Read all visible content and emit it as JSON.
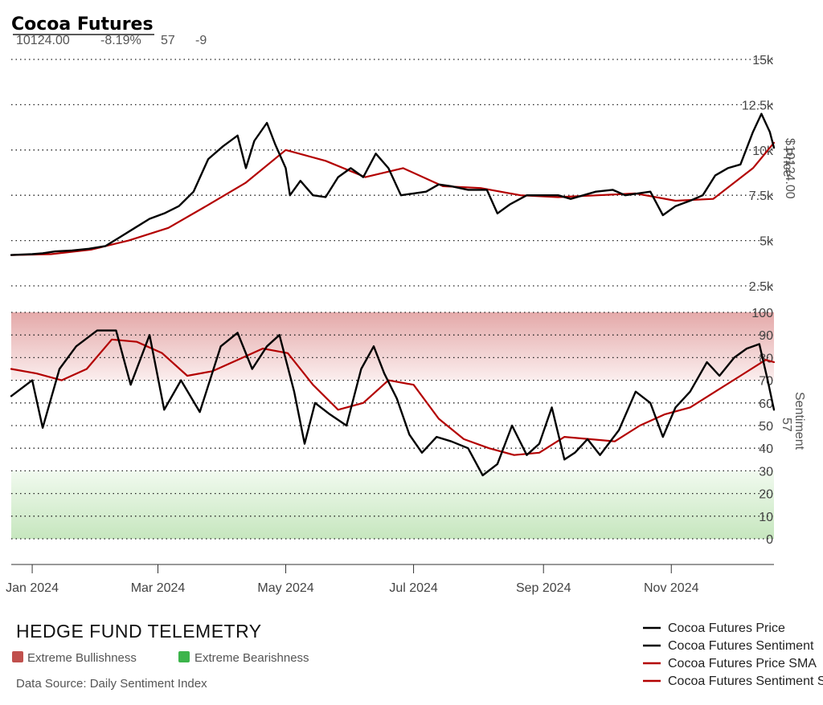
{
  "title": "Cocoa Futures",
  "stats": {
    "price": "10124.00",
    "change": "-8.19%",
    "sentiment": "57",
    "sentiment_change": "-9"
  },
  "brand": "HEDGE FUND TELEMETRY",
  "data_source": "Data Source: Daily Sentiment Index",
  "zones": [
    {
      "label": "Extreme Bullishness",
      "color": "#c0504d"
    },
    {
      "label": "Extreme Bearishness",
      "color": "#3cb44b"
    }
  ],
  "legend": [
    {
      "label": "Cocoa Futures Price",
      "color": "#000000"
    },
    {
      "label": "Cocoa Futures Sentiment",
      "color": "#000000"
    },
    {
      "label": "Cocoa Futures Price SMA",
      "color": "#b30000"
    },
    {
      "label": "Cocoa Futures Sentiment SMA",
      "color": "#b30000"
    }
  ],
  "colors": {
    "price": "#000000",
    "sma": "#b30000",
    "bull_zone": "#e8b0b0",
    "bear_zone": "#c8e8c0"
  },
  "price_axis": {
    "title": "Price",
    "value_label": "$10124.00",
    "ticks": [
      "15k",
      "12.5k",
      "10k",
      "7.5k",
      "5k",
      "2.5k"
    ],
    "tick_values": [
      15000,
      12500,
      10000,
      7500,
      5000,
      2500
    ],
    "range": [
      0,
      15000
    ]
  },
  "sentiment_axis": {
    "title": "Sentiment",
    "value_label": "57",
    "ticks": [
      "100",
      "90",
      "80",
      "70",
      "60",
      "50",
      "40",
      "30",
      "20",
      "10",
      "0"
    ],
    "tick_values": [
      100,
      90,
      80,
      70,
      60,
      50,
      40,
      30,
      20,
      10,
      0
    ],
    "range": [
      0,
      100
    ],
    "bull_zone": [
      70,
      100
    ],
    "bear_zone": [
      0,
      30
    ]
  },
  "x_axis": {
    "ticks": [
      "Jan 2024",
      "Mar 2024",
      "May 2024",
      "Jul 2024",
      "Sep 2024",
      "Nov 2024"
    ],
    "tick_dates": [
      "2024-01-01",
      "2024-03-01",
      "2024-05-01",
      "2024-07-01",
      "2024-09-01",
      "2024-11-01"
    ],
    "range": [
      "2023-12-22",
      "2024-12-20"
    ]
  },
  "chart_data": {
    "type": "line",
    "title": "Cocoa Futures",
    "xlabel": "",
    "series": [
      {
        "name": "Cocoa Futures Price",
        "panel": "price",
        "points": [
          [
            "2023-12-22",
            4200
          ],
          [
            "2024-01-01",
            4250
          ],
          [
            "2024-01-06",
            4300
          ],
          [
            "2024-01-12",
            4400
          ],
          [
            "2024-01-20",
            4450
          ],
          [
            "2024-01-28",
            4550
          ],
          [
            "2024-02-05",
            4700
          ],
          [
            "2024-02-12",
            5200
          ],
          [
            "2024-02-19",
            5700
          ],
          [
            "2024-02-26",
            6200
          ],
          [
            "2024-03-04",
            6500
          ],
          [
            "2024-03-11",
            6900
          ],
          [
            "2024-03-18",
            7700
          ],
          [
            "2024-03-25",
            9500
          ],
          [
            "2024-04-01",
            10200
          ],
          [
            "2024-04-08",
            10800
          ],
          [
            "2024-04-12",
            9000
          ],
          [
            "2024-04-16",
            10500
          ],
          [
            "2024-04-22",
            11500
          ],
          [
            "2024-04-26",
            10300
          ],
          [
            "2024-05-01",
            9000
          ],
          [
            "2024-05-03",
            7500
          ],
          [
            "2024-05-08",
            8300
          ],
          [
            "2024-05-14",
            7500
          ],
          [
            "2024-05-20",
            7400
          ],
          [
            "2024-05-26",
            8500
          ],
          [
            "2024-06-01",
            9000
          ],
          [
            "2024-06-07",
            8500
          ],
          [
            "2024-06-13",
            9800
          ],
          [
            "2024-06-19",
            9000
          ],
          [
            "2024-06-25",
            7500
          ],
          [
            "2024-07-01",
            7600
          ],
          [
            "2024-07-07",
            7700
          ],
          [
            "2024-07-13",
            8100
          ],
          [
            "2024-07-19",
            8000
          ],
          [
            "2024-07-27",
            7800
          ],
          [
            "2024-08-05",
            7800
          ],
          [
            "2024-08-10",
            6500
          ],
          [
            "2024-08-16",
            7000
          ],
          [
            "2024-08-24",
            7500
          ],
          [
            "2024-09-01",
            7500
          ],
          [
            "2024-09-08",
            7500
          ],
          [
            "2024-09-14",
            7300
          ],
          [
            "2024-09-20",
            7500
          ],
          [
            "2024-09-26",
            7700
          ],
          [
            "2024-10-04",
            7800
          ],
          [
            "2024-10-10",
            7500
          ],
          [
            "2024-10-16",
            7600
          ],
          [
            "2024-10-22",
            7700
          ],
          [
            "2024-10-28",
            6400
          ],
          [
            "2024-11-03",
            6900
          ],
          [
            "2024-11-10",
            7200
          ],
          [
            "2024-11-16",
            7500
          ],
          [
            "2024-11-22",
            8600
          ],
          [
            "2024-11-28",
            9000
          ],
          [
            "2024-12-04",
            9200
          ],
          [
            "2024-12-10",
            11000
          ],
          [
            "2024-12-14",
            12000
          ],
          [
            "2024-12-18",
            11000
          ],
          [
            "2024-12-20",
            10124
          ]
        ]
      },
      {
        "name": "Cocoa Futures Price SMA",
        "panel": "price",
        "points": [
          [
            "2023-12-22",
            4200
          ],
          [
            "2024-01-10",
            4250
          ],
          [
            "2024-01-29",
            4500
          ],
          [
            "2024-02-16",
            5000
          ],
          [
            "2024-03-06",
            5700
          ],
          [
            "2024-03-24",
            6900
          ],
          [
            "2024-04-12",
            8200
          ],
          [
            "2024-05-01",
            10000
          ],
          [
            "2024-05-20",
            9400
          ],
          [
            "2024-06-08",
            8500
          ],
          [
            "2024-06-26",
            9000
          ],
          [
            "2024-07-15",
            8000
          ],
          [
            "2024-08-02",
            7900
          ],
          [
            "2024-08-21",
            7500
          ],
          [
            "2024-09-08",
            7400
          ],
          [
            "2024-09-27",
            7500
          ],
          [
            "2024-10-15",
            7600
          ],
          [
            "2024-11-03",
            7200
          ],
          [
            "2024-11-21",
            7300
          ],
          [
            "2024-12-10",
            9000
          ],
          [
            "2024-12-20",
            10400
          ]
        ]
      },
      {
        "name": "Cocoa Futures Sentiment",
        "panel": "sentiment",
        "points": [
          [
            "2023-12-22",
            63
          ],
          [
            "2024-01-01",
            70
          ],
          [
            "2024-01-06",
            49
          ],
          [
            "2024-01-14",
            75
          ],
          [
            "2024-01-22",
            85
          ],
          [
            "2024-02-01",
            92
          ],
          [
            "2024-02-10",
            92
          ],
          [
            "2024-02-17",
            68
          ],
          [
            "2024-02-26",
            90
          ],
          [
            "2024-03-04",
            57
          ],
          [
            "2024-03-12",
            70
          ],
          [
            "2024-03-21",
            56
          ],
          [
            "2024-03-31",
            85
          ],
          [
            "2024-04-08",
            91
          ],
          [
            "2024-04-15",
            75
          ],
          [
            "2024-04-22",
            85
          ],
          [
            "2024-04-28",
            90
          ],
          [
            "2024-05-05",
            65
          ],
          [
            "2024-05-10",
            42
          ],
          [
            "2024-05-15",
            60
          ],
          [
            "2024-05-22",
            55
          ],
          [
            "2024-05-30",
            50
          ],
          [
            "2024-06-06",
            75
          ],
          [
            "2024-06-12",
            85
          ],
          [
            "2024-06-17",
            73
          ],
          [
            "2024-06-23",
            62
          ],
          [
            "2024-06-29",
            46
          ],
          [
            "2024-07-05",
            38
          ],
          [
            "2024-07-12",
            45
          ],
          [
            "2024-07-19",
            43
          ],
          [
            "2024-07-27",
            40
          ],
          [
            "2024-08-03",
            28
          ],
          [
            "2024-08-10",
            33
          ],
          [
            "2024-08-17",
            50
          ],
          [
            "2024-08-24",
            37
          ],
          [
            "2024-08-30",
            42
          ],
          [
            "2024-09-05",
            58
          ],
          [
            "2024-09-11",
            35
          ],
          [
            "2024-09-16",
            38
          ],
          [
            "2024-09-22",
            44
          ],
          [
            "2024-09-28",
            37
          ],
          [
            "2024-10-07",
            48
          ],
          [
            "2024-10-15",
            65
          ],
          [
            "2024-10-22",
            60
          ],
          [
            "2024-10-28",
            45
          ],
          [
            "2024-11-03",
            58
          ],
          [
            "2024-11-10",
            65
          ],
          [
            "2024-11-18",
            78
          ],
          [
            "2024-11-24",
            72
          ],
          [
            "2024-12-01",
            80
          ],
          [
            "2024-12-07",
            84
          ],
          [
            "2024-12-13",
            86
          ],
          [
            "2024-12-17",
            70
          ],
          [
            "2024-12-20",
            57
          ]
        ]
      },
      {
        "name": "Cocoa Futures Sentiment SMA",
        "panel": "sentiment",
        "points": [
          [
            "2023-12-22",
            75
          ],
          [
            "2024-01-03",
            73
          ],
          [
            "2024-01-15",
            70
          ],
          [
            "2024-01-27",
            75
          ],
          [
            "2024-02-08",
            88
          ],
          [
            "2024-02-20",
            87
          ],
          [
            "2024-03-03",
            82
          ],
          [
            "2024-03-15",
            72
          ],
          [
            "2024-03-27",
            74
          ],
          [
            "2024-04-08",
            79
          ],
          [
            "2024-04-20",
            84
          ],
          [
            "2024-05-02",
            82
          ],
          [
            "2024-05-14",
            68
          ],
          [
            "2024-05-26",
            57
          ],
          [
            "2024-06-07",
            60
          ],
          [
            "2024-06-19",
            70
          ],
          [
            "2024-07-01",
            68
          ],
          [
            "2024-07-13",
            53
          ],
          [
            "2024-07-25",
            44
          ],
          [
            "2024-08-06",
            40
          ],
          [
            "2024-08-18",
            37
          ],
          [
            "2024-08-30",
            38
          ],
          [
            "2024-09-11",
            45
          ],
          [
            "2024-09-23",
            44
          ],
          [
            "2024-10-05",
            43
          ],
          [
            "2024-10-17",
            50
          ],
          [
            "2024-10-29",
            55
          ],
          [
            "2024-11-10",
            58
          ],
          [
            "2024-11-22",
            65
          ],
          [
            "2024-12-04",
            72
          ],
          [
            "2024-12-16",
            79
          ],
          [
            "2024-12-20",
            78
          ]
        ]
      }
    ]
  }
}
